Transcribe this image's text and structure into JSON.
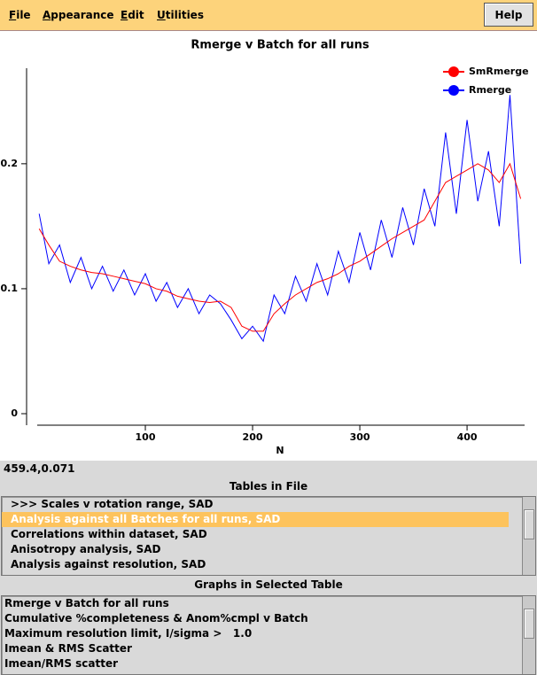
{
  "menu": [
    "File",
    "Appearance",
    "Edit",
    "Utilities"
  ],
  "help": "Help",
  "chart_data": {
    "type": "line",
    "title": "Rmerge v Batch for all runs",
    "x_label": "N",
    "x": [
      1,
      10,
      20,
      30,
      40,
      50,
      60,
      70,
      80,
      90,
      100,
      110,
      120,
      130,
      140,
      150,
      160,
      170,
      180,
      190,
      200,
      210,
      220,
      230,
      240,
      250,
      260,
      270,
      280,
      290,
      300,
      310,
      320,
      330,
      340,
      350,
      360,
      370,
      380,
      390,
      400,
      410,
      420,
      430,
      440,
      450
    ],
    "series": [
      {
        "name": "SmRmerge",
        "color": "#ff0000",
        "values": [
          0.148,
          0.135,
          0.122,
          0.118,
          0.115,
          0.113,
          0.112,
          0.11,
          0.108,
          0.106,
          0.104,
          0.1,
          0.098,
          0.094,
          0.092,
          0.09,
          0.089,
          0.09,
          0.085,
          0.07,
          0.066,
          0.066,
          0.08,
          0.088,
          0.095,
          0.1,
          0.105,
          0.108,
          0.112,
          0.118,
          0.122,
          0.128,
          0.134,
          0.14,
          0.145,
          0.15,
          0.155,
          0.17,
          0.185,
          0.19,
          0.195,
          0.2,
          0.195,
          0.185,
          0.2,
          0.172
        ]
      },
      {
        "name": "Rmerge",
        "color": "#0000ff",
        "values": [
          0.16,
          0.12,
          0.135,
          0.105,
          0.125,
          0.1,
          0.118,
          0.098,
          0.115,
          0.095,
          0.112,
          0.09,
          0.105,
          0.085,
          0.1,
          0.08,
          0.095,
          0.088,
          0.075,
          0.06,
          0.07,
          0.058,
          0.095,
          0.08,
          0.11,
          0.09,
          0.12,
          0.095,
          0.13,
          0.105,
          0.145,
          0.115,
          0.155,
          0.125,
          0.165,
          0.135,
          0.18,
          0.15,
          0.225,
          0.16,
          0.235,
          0.17,
          0.21,
          0.15,
          0.255,
          0.12
        ]
      }
    ],
    "xlim": [
      0,
      452
    ],
    "xticks": [
      100,
      200,
      300,
      400
    ],
    "ylim": [
      0,
      0.28
    ],
    "yticks": [
      0,
      0.1,
      0.2
    ],
    "legend": "upper right"
  },
  "status": "459.4,0.071",
  "tables": {
    "title": "Tables in File",
    "selected": 1,
    "items": [
      ">>> Scales v rotation range, SAD",
      "Analysis against all Batches for all runs, SAD",
      "Correlations within dataset, SAD",
      "Anisotropy analysis, SAD",
      "Analysis against resolution, SAD"
    ]
  },
  "graphs": {
    "title": "Graphs in Selected Table",
    "items": [
      "Rmerge v Batch for all runs",
      "Cumulative %completeness & Anom%cmpl v Batch",
      "Maximum resolution limit, I/sigma >   1.0",
      "Imean & RMS Scatter",
      "Imean/RMS scatter"
    ]
  }
}
